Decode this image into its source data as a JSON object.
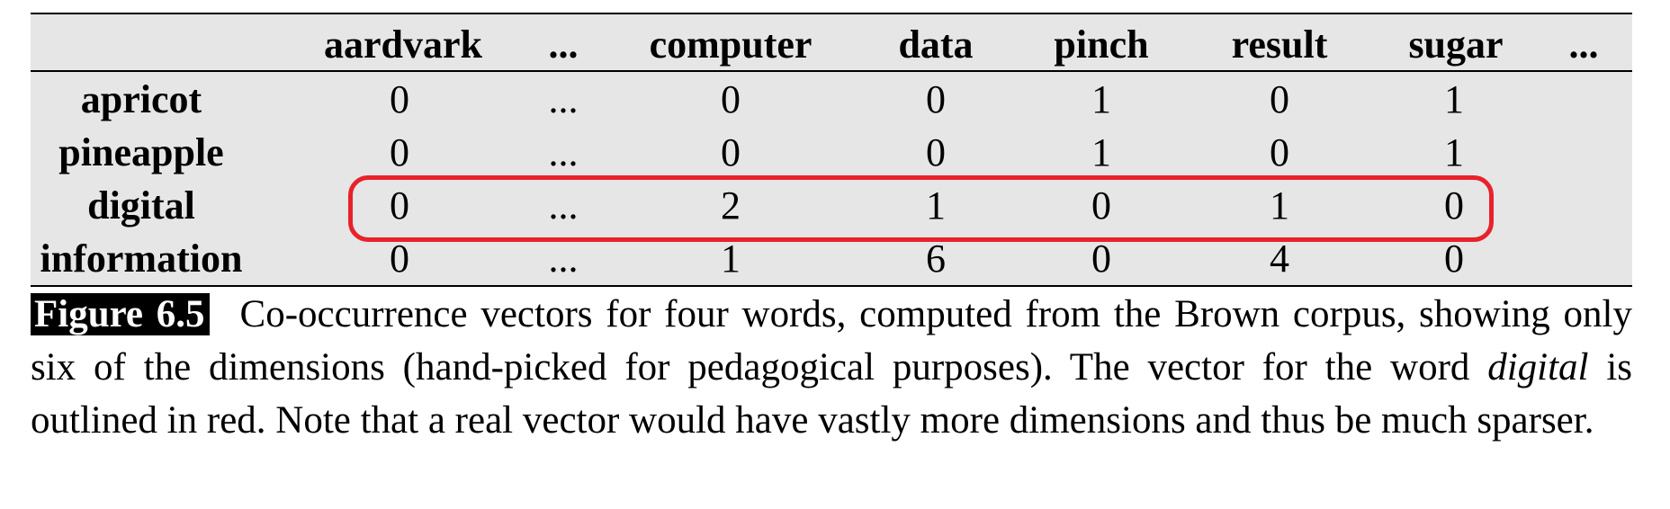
{
  "table": {
    "columns": [
      "aardvark",
      "...",
      "computer",
      "data",
      "pinch",
      "result",
      "sugar",
      "..."
    ],
    "rows": [
      {
        "label": "apricot",
        "values": [
          "0",
          "...",
          "0",
          "0",
          "1",
          "0",
          "1"
        ]
      },
      {
        "label": "pineapple",
        "values": [
          "0",
          "...",
          "0",
          "0",
          "1",
          "0",
          "1"
        ]
      },
      {
        "label": "digital",
        "values": [
          "0",
          "...",
          "2",
          "1",
          "0",
          "1",
          "0"
        ]
      },
      {
        "label": "information",
        "values": [
          "0",
          "...",
          "1",
          "6",
          "0",
          "4",
          "0"
        ]
      }
    ],
    "highlighted_row": "digital",
    "highlight_color": "#e8222a"
  },
  "caption": {
    "label": "Figure 6.5",
    "text_before": "Co-occurrence vectors for four words, computed from the Brown corpus, showing only six of the dimensions (hand-picked for pedagogical purposes).  The vector for the word ",
    "emphasis": "digital",
    "text_after": " is outlined in red.  Note that a real vector would have vastly more dimensions and thus be much sparser."
  }
}
